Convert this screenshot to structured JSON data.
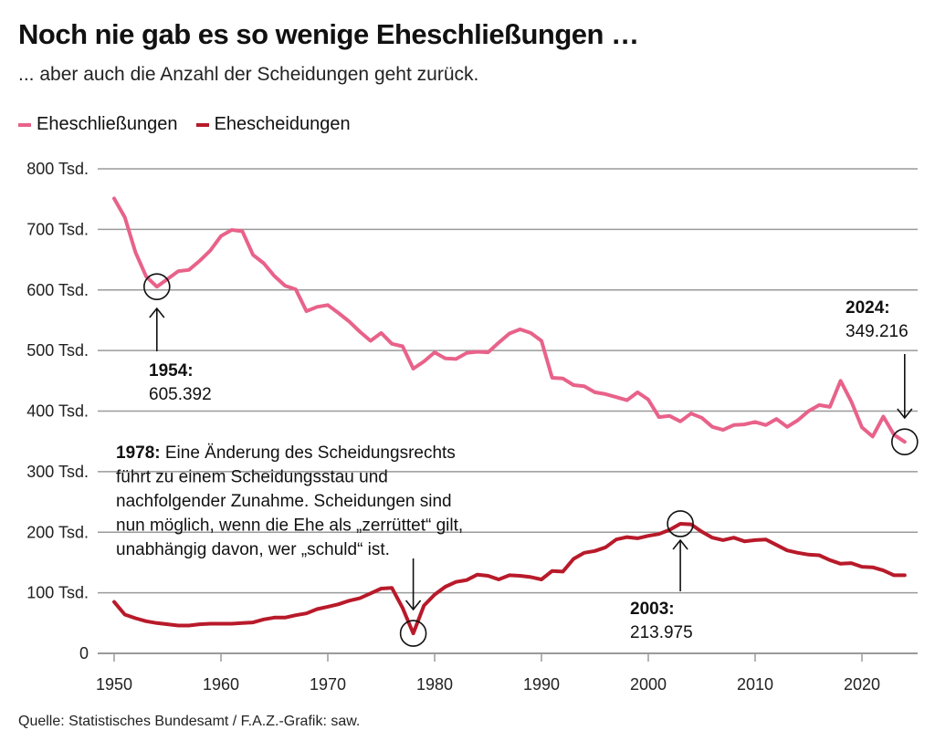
{
  "header": {
    "title": "Noch nie gab es so wenige Eheschließungen …",
    "subtitle": "... aber auch die Anzahl der Scheidungen geht zurück."
  },
  "footer": {
    "source": "Quelle: Statistisches Bundesamt / F.A.Z.-Grafik: saw."
  },
  "chart_data": {
    "type": "line",
    "title": "Noch nie gab es so wenige Eheschließungen …",
    "subtitle": "... aber auch die Anzahl der Scheidungen geht zurück.",
    "xlabel": "",
    "ylabel": "",
    "xlim": [
      1950,
      2025
    ],
    "ylim": [
      0,
      800
    ],
    "grid": true,
    "legend_position": "top-left",
    "y_ticks": [
      {
        "value": 0,
        "label": "0"
      },
      {
        "value": 100,
        "label": "100 Tsd."
      },
      {
        "value": 200,
        "label": "200 Tsd."
      },
      {
        "value": 300,
        "label": "300 Tsd."
      },
      {
        "value": 400,
        "label": "400 Tsd."
      },
      {
        "value": 500,
        "label": "500 Tsd."
      },
      {
        "value": 600,
        "label": "600 Tsd."
      },
      {
        "value": 700,
        "label": "700 Tsd."
      },
      {
        "value": 800,
        "label": "800 Tsd."
      }
    ],
    "x_ticks": [
      {
        "value": 1950,
        "label": "1950"
      },
      {
        "value": 1960,
        "label": "1960"
      },
      {
        "value": 1970,
        "label": "1970"
      },
      {
        "value": 1980,
        "label": "1980"
      },
      {
        "value": 1990,
        "label": "1990"
      },
      {
        "value": 2000,
        "label": "2000"
      },
      {
        "value": 2010,
        "label": "2010"
      },
      {
        "value": 2020,
        "label": "2020"
      }
    ],
    "series": [
      {
        "name": "Eheschließungen",
        "color": "#e8628a",
        "unit": "Tsd.",
        "x": [
          1950,
          1951,
          1952,
          1953,
          1954,
          1955,
          1956,
          1957,
          1958,
          1959,
          1960,
          1961,
          1962,
          1963,
          1964,
          1965,
          1966,
          1967,
          1968,
          1969,
          1970,
          1971,
          1972,
          1973,
          1974,
          1975,
          1976,
          1977,
          1978,
          1979,
          1980,
          1981,
          1982,
          1983,
          1984,
          1985,
          1986,
          1987,
          1988,
          1989,
          1990,
          1991,
          1992,
          1993,
          1994,
          1995,
          1996,
          1997,
          1998,
          1999,
          2000,
          2001,
          2002,
          2003,
          2004,
          2005,
          2006,
          2007,
          2008,
          2009,
          2010,
          2011,
          2012,
          2013,
          2014,
          2015,
          2016,
          2017,
          2018,
          2019,
          2020,
          2021,
          2022,
          2023,
          2024
        ],
        "values": [
          751,
          720,
          662,
          622,
          605.392,
          618,
          631,
          633,
          648,
          665,
          689,
          699,
          697,
          658,
          644,
          623,
          607,
          601,
          565,
          572,
          575,
          562,
          548,
          531,
          516,
          529,
          511,
          507,
          470,
          482,
          497,
          487,
          486,
          496,
          498,
          497,
          513,
          528,
          535,
          529,
          516,
          455,
          454,
          443,
          441,
          431,
          428,
          423,
          418,
          431,
          419,
          390,
          392,
          383,
          396,
          389,
          374,
          369,
          377,
          378,
          382,
          377,
          387,
          374,
          385,
          400,
          410,
          407,
          450,
          416,
          373,
          358,
          391,
          361,
          349.216
        ]
      },
      {
        "name": "Ehescheidungen",
        "color": "#b81a2a",
        "unit": "Tsd.",
        "x": [
          1950,
          1951,
          1952,
          1953,
          1954,
          1955,
          1956,
          1957,
          1958,
          1959,
          1960,
          1961,
          1962,
          1963,
          1964,
          1965,
          1966,
          1967,
          1968,
          1969,
          1970,
          1971,
          1972,
          1973,
          1974,
          1975,
          1976,
          1977,
          1978,
          1979,
          1980,
          1981,
          1982,
          1983,
          1984,
          1985,
          1986,
          1987,
          1988,
          1989,
          1990,
          1991,
          1992,
          1993,
          1994,
          1995,
          1996,
          1997,
          1998,
          1999,
          2000,
          2001,
          2002,
          2003,
          2004,
          2005,
          2006,
          2007,
          2008,
          2009,
          2010,
          2011,
          2012,
          2013,
          2014,
          2015,
          2016,
          2017,
          2018,
          2019,
          2020,
          2021,
          2022,
          2023,
          2024
        ],
        "values": [
          85,
          64,
          58,
          53,
          50,
          48,
          46,
          46,
          48,
          49,
          49,
          49,
          50,
          51,
          56,
          59,
          59,
          63,
          66,
          73,
          77,
          81,
          87,
          91,
          99,
          107,
          108,
          75,
          33,
          79,
          97,
          110,
          118,
          121,
          130,
          128,
          122,
          129,
          128,
          126,
          122,
          136,
          135,
          156,
          166,
          169,
          175,
          188,
          192,
          190,
          194,
          197,
          204,
          213.975,
          213,
          201,
          191,
          187,
          191,
          185,
          187,
          188,
          179,
          170,
          166,
          163,
          162,
          154,
          148,
          149,
          143,
          142,
          137,
          129,
          129
        ]
      }
    ],
    "annotations": [
      {
        "series": "Eheschließungen",
        "x": 1954,
        "y": 605.392,
        "label_bold": "1954:",
        "label_text": "605.392",
        "arrow": "up"
      },
      {
        "series": "Eheschließungen",
        "x": 2024,
        "y": 349.216,
        "label_bold": "2024:",
        "label_text": "349.216",
        "arrow": "down"
      },
      {
        "series": "Ehescheidungen",
        "x": 1978,
        "y": 33,
        "label_bold": "1978:",
        "label_lines": [
          "Eine Änderung des Scheidungsrechts",
          "führt zu einem Scheidungsstau und",
          "nachfolgender Zunahme. Scheidungen sind",
          "nun möglich, wenn die Ehe als „zerrüttet“ gilt,",
          "unabhängig davon, wer „schuld“ ist."
        ],
        "arrow": "down"
      },
      {
        "series": "Ehescheidungen",
        "x": 2003,
        "y": 213.975,
        "label_bold": "2003:",
        "label_text": "213.975",
        "arrow": "up"
      }
    ]
  }
}
